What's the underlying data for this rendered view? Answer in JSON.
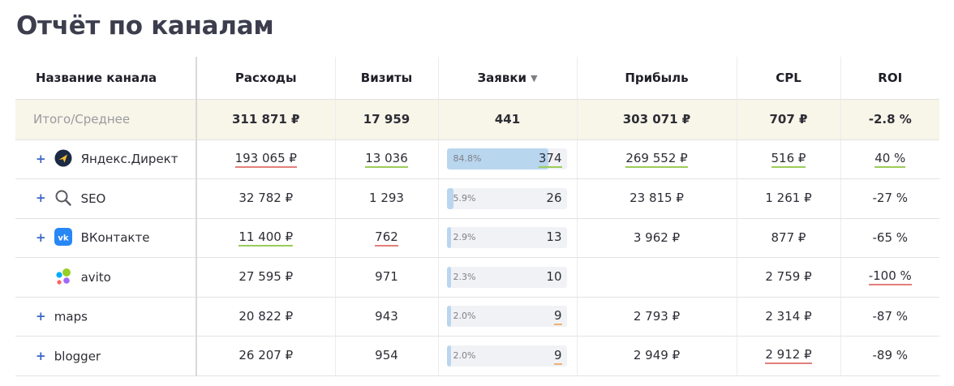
{
  "report_title": "Отчёт по каналам",
  "colors": {
    "accent": "#3a66c4",
    "bar_fill": "#b9d6ef",
    "total_row_bg": "#f8f5e9",
    "underline_red": "#e2807a",
    "underline_green": "#9ccc5a",
    "underline_orange": "#ecb176"
  },
  "columns": [
    "Название канала",
    "Расходы",
    "Визиты",
    "Заявки",
    "Прибыль",
    "CPL",
    "ROI"
  ],
  "sort_column": "Заявки",
  "sort_icon": "sort-down-triangle-icon",
  "total": {
    "label": "Итого/Среднее",
    "spend": "311 871 ₽",
    "visits": "17 959",
    "leads": "441",
    "profit": "303 071 ₽",
    "cpl": "707 ₽",
    "roi": "-2.8 %"
  },
  "rows": [
    {
      "expand": "+",
      "icon": "yandex-direct-icon",
      "name": "Яндекс.Директ",
      "spend": "193 065 ₽",
      "visits": "13 036",
      "leads_pct": "84.8%",
      "leads_fraction": 0.848,
      "leads": "374",
      "profit": "269 552 ₽",
      "cpl": "516 ₽",
      "roi": "40 %"
    },
    {
      "expand": "+",
      "icon": "search-icon",
      "name": "SEO",
      "spend": "32 782 ₽",
      "visits": "1 293",
      "leads_pct": "5.9%",
      "leads_fraction": 0.059,
      "leads": "26",
      "profit": "23 815 ₽",
      "cpl": "1 261 ₽",
      "roi": "-27 %"
    },
    {
      "expand": "+",
      "icon": "vk-icon",
      "name": "ВКонтакте",
      "spend": "11 400 ₽",
      "visits": "762",
      "leads_pct": "2.9%",
      "leads_fraction": 0.029,
      "leads": "13",
      "profit": "3 962 ₽",
      "cpl": "877 ₽",
      "roi": "-65 %"
    },
    {
      "expand": "",
      "icon": "avito-icon",
      "name": "avito",
      "spend": "27 595 ₽",
      "visits": "971",
      "leads_pct": "2.3%",
      "leads_fraction": 0.023,
      "leads": "10",
      "profit": "",
      "cpl": "2 759 ₽",
      "roi": "-100 %"
    },
    {
      "expand": "+",
      "icon": "",
      "name": "maps",
      "spend": "20 822 ₽",
      "visits": "943",
      "leads_pct": "2.0%",
      "leads_fraction": 0.02,
      "leads": "9",
      "profit": "2 793 ₽",
      "cpl": "2 314 ₽",
      "roi": "-87 %"
    },
    {
      "expand": "+",
      "icon": "",
      "name": "blogger",
      "spend": "26 207 ₽",
      "visits": "954",
      "leads_pct": "2.0%",
      "leads_fraction": 0.02,
      "leads": "9",
      "profit": "2 949 ₽",
      "cpl": "2 912 ₽",
      "roi": "-89 %"
    }
  ]
}
